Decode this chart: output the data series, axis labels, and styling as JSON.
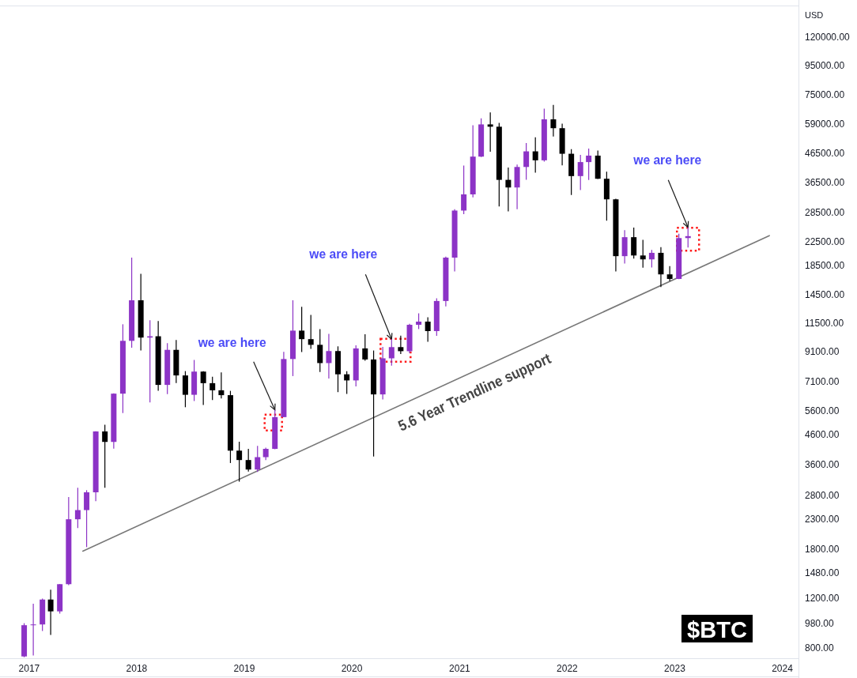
{
  "chart_data": {
    "type": "candlestick",
    "ylabel": "USD",
    "log": true,
    "annotations": [
      {
        "text": "we are here",
        "x": "2019-04-15",
        "y": 5640
      },
      {
        "text": "we are here",
        "x": "2020-05-15",
        "y": 10080
      },
      {
        "text": "we are here",
        "x": "2023-02-15",
        "y": 25250
      },
      {
        "text": "5.6 Year Trendline support",
        "x": "2021-01-25",
        "y": 7500
      },
      "$BTC"
    ],
    "xlim": [
      "2016-09-24",
      "2024-02-25"
    ],
    "xticks": [
      {
        "value": "2017-01-01",
        "label": "2017"
      },
      {
        "value": "2018-01-01",
        "label": "2018"
      },
      {
        "value": "2019-01-01",
        "label": "2019"
      },
      {
        "value": "2020-01-01",
        "label": "2020"
      },
      {
        "value": "2021-01-01",
        "label": "2021"
      },
      {
        "value": "2022-01-01",
        "label": "2022"
      },
      {
        "value": "2023-01-01",
        "label": "2023"
      },
      {
        "value": "2024-01-01",
        "label": "2024"
      }
    ],
    "ylim": [
      735,
      155000
    ],
    "yticks": [
      {
        "value": 800,
        "label": "800.00"
      },
      {
        "value": 980,
        "label": "980.00"
      },
      {
        "value": 1200,
        "label": "1200.00"
      },
      {
        "value": 1480,
        "label": "1480.00"
      },
      {
        "value": 1800,
        "label": "1800.00"
      },
      {
        "value": 2300,
        "label": "2300.00"
      },
      {
        "value": 2800,
        "label": "2800.00"
      },
      {
        "value": 3600,
        "label": "3600.00"
      },
      {
        "value": 4600,
        "label": "4600.00"
      },
      {
        "value": 5600,
        "label": "5600.00"
      },
      {
        "value": 7100,
        "label": "7100.00"
      },
      {
        "value": 9100,
        "label": "9100.00"
      },
      {
        "value": 11500,
        "label": "11500.00"
      },
      {
        "value": 14500,
        "label": "14500.00"
      },
      {
        "value": 18500,
        "label": "18500.00"
      },
      {
        "value": 22500,
        "label": "22500.00"
      },
      {
        "value": 28500,
        "label": "28500.00"
      },
      {
        "value": 36500,
        "label": "36500.00"
      },
      {
        "value": 46500,
        "label": "46500.00"
      },
      {
        "value": 59000,
        "label": "59000.00"
      },
      {
        "value": 75000,
        "label": "75000.00"
      },
      {
        "value": 95000,
        "label": "95000.00"
      },
      {
        "value": 120000,
        "label": "120000.00"
      }
    ],
    "x": [
      "2016-12-15",
      "2017-01-15",
      "2017-02-15",
      "2017-03-15",
      "2017-04-15",
      "2017-05-15",
      "2017-06-15",
      "2017-07-15",
      "2017-08-15",
      "2017-09-15",
      "2017-10-15",
      "2017-11-15",
      "2017-12-15",
      "2018-01-15",
      "2018-02-15",
      "2018-03-15",
      "2018-04-15",
      "2018-05-15",
      "2018-06-15",
      "2018-07-15",
      "2018-08-15",
      "2018-09-15",
      "2018-10-15",
      "2018-11-15",
      "2018-12-15",
      "2019-01-15",
      "2019-02-15",
      "2019-03-15",
      "2019-04-15",
      "2019-05-15",
      "2019-06-15",
      "2019-07-15",
      "2019-08-15",
      "2019-09-15",
      "2019-10-15",
      "2019-11-15",
      "2019-12-15",
      "2020-01-15",
      "2020-02-15",
      "2020-03-15",
      "2020-04-15",
      "2020-05-15",
      "2020-06-15",
      "2020-07-15",
      "2020-08-15",
      "2020-09-15",
      "2020-10-15",
      "2020-11-15",
      "2020-12-15",
      "2021-01-15",
      "2021-02-15",
      "2021-03-15",
      "2021-04-15",
      "2021-05-15",
      "2021-06-15",
      "2021-07-15",
      "2021-08-15",
      "2021-09-15",
      "2021-10-15",
      "2021-11-15",
      "2021-12-15",
      "2022-01-15",
      "2022-02-15",
      "2022-03-15",
      "2022-04-15",
      "2022-05-15",
      "2022-06-15",
      "2022-07-15",
      "2022-08-15",
      "2022-09-15",
      "2022-10-15",
      "2022-11-15",
      "2022-12-15",
      "2023-01-15",
      "2023-02-15"
    ],
    "ohlc": [
      [
        746,
        980,
        741,
        964
      ],
      [
        964,
        1150,
        752,
        970
      ],
      [
        970,
        1200,
        920,
        1190
      ],
      [
        1190,
        1290,
        890,
        1080
      ],
      [
        1080,
        1350,
        1060,
        1350
      ],
      [
        1350,
        2760,
        1340,
        2300
      ],
      [
        2300,
        2980,
        2140,
        2480
      ],
      [
        2480,
        2920,
        1830,
        2870
      ],
      [
        2870,
        4740,
        2670,
        4730
      ],
      [
        4730,
        5000,
        2980,
        4340
      ],
      [
        4340,
        6470,
        4110,
        6450
      ],
      [
        6450,
        11400,
        5500,
        9950
      ],
      [
        9950,
        19700,
        9400,
        13880
      ],
      [
        13880,
        17250,
        9200,
        10220
      ],
      [
        10220,
        11790,
        6000,
        10330
      ],
      [
        10330,
        11700,
        6600,
        6930
      ],
      [
        6930,
        9760,
        6430,
        9240
      ],
      [
        9240,
        10020,
        7040,
        7490
      ],
      [
        7490,
        7760,
        5770,
        6390
      ],
      [
        6390,
        8500,
        6070,
        7730
      ],
      [
        7730,
        7760,
        5880,
        7030
      ],
      [
        7030,
        7410,
        6120,
        6630
      ],
      [
        6630,
        7680,
        6200,
        6370
      ],
      [
        6370,
        6600,
        3650,
        4040
      ],
      [
        4040,
        4350,
        3130,
        3740
      ],
      [
        3740,
        4100,
        3400,
        3460
      ],
      [
        3460,
        4200,
        3390,
        3830
      ],
      [
        3830,
        4140,
        3740,
        4100
      ],
      [
        4100,
        5640,
        4090,
        5320
      ],
      [
        5320,
        9090,
        5320,
        8570
      ],
      [
        8570,
        13880,
        7450,
        10820
      ],
      [
        10820,
        13160,
        9070,
        10090
      ],
      [
        10090,
        12320,
        9320,
        9630
      ],
      [
        9630,
        10960,
        7710,
        8290
      ],
      [
        8290,
        10540,
        7300,
        9150
      ],
      [
        9150,
        9510,
        6530,
        7560
      ],
      [
        7560,
        7750,
        6440,
        7190
      ],
      [
        7190,
        9590,
        6850,
        9350
      ],
      [
        9350,
        10500,
        8450,
        8540
      ],
      [
        8540,
        9190,
        3850,
        6410
      ],
      [
        6410,
        9460,
        6150,
        8620
      ],
      [
        8620,
        10080,
        8110,
        9450
      ],
      [
        9450,
        10380,
        8930,
        9140
      ],
      [
        9140,
        11450,
        8990,
        11350
      ],
      [
        11350,
        12470,
        10960,
        11650
      ],
      [
        11650,
        12070,
        9880,
        10780
      ],
      [
        10780,
        14100,
        10370,
        13800
      ],
      [
        13800,
        19860,
        13200,
        19700
      ],
      [
        19700,
        29300,
        17600,
        28990
      ],
      [
        28990,
        41950,
        28130,
        33110
      ],
      [
        33110,
        58350,
        32300,
        45140
      ],
      [
        45140,
        61780,
        45000,
        58800
      ],
      [
        58800,
        64850,
        47000,
        57700
      ],
      [
        57700,
        59500,
        30000,
        37300
      ],
      [
        37300,
        41300,
        28800,
        35040
      ],
      [
        35040,
        42300,
        29300,
        41460
      ],
      [
        41460,
        50500,
        37330,
        47130
      ],
      [
        47130,
        52920,
        39600,
        43790
      ],
      [
        43790,
        66930,
        43300,
        61300
      ],
      [
        61300,
        69000,
        53250,
        57000
      ],
      [
        57000,
        59120,
        42000,
        46210
      ],
      [
        46210,
        47990,
        32930,
        38470
      ],
      [
        38470,
        45820,
        34320,
        43160
      ],
      [
        43160,
        48190,
        37260,
        45510
      ],
      [
        45510,
        47440,
        37580,
        37640
      ],
      [
        37640,
        39900,
        26700,
        31790
      ],
      [
        31790,
        31960,
        17600,
        19940
      ],
      [
        19940,
        24670,
        18780,
        23300
      ],
      [
        23300,
        25200,
        19540,
        20050
      ],
      [
        20050,
        22800,
        18150,
        19420
      ],
      [
        19420,
        20990,
        18180,
        20490
      ],
      [
        20490,
        21470,
        15480,
        17170
      ],
      [
        17170,
        18390,
        16250,
        16540
      ],
      [
        16540,
        23960,
        16500,
        23130
      ],
      [
        23130,
        25250,
        21400,
        23500
      ]
    ],
    "colors": [
      "#8c33c6",
      "#8c33c6",
      "#8c33c6",
      "#000000",
      "#8c33c6",
      "#8c33c6",
      "#8c33c6",
      "#8c33c6",
      "#8c33c6",
      "#000000",
      "#8c33c6",
      "#8c33c6",
      "#8c33c6",
      "#000000",
      "#8c33c6",
      "#000000",
      "#8c33c6",
      "#000000",
      "#000000",
      "#8c33c6",
      "#000000",
      "#000000",
      "#000000",
      "#000000",
      "#000000",
      "#000000",
      "#8c33c6",
      "#8c33c6",
      "#8c33c6",
      "#8c33c6",
      "#8c33c6",
      "#000000",
      "#000000",
      "#000000",
      "#8c33c6",
      "#000000",
      "#000000",
      "#8c33c6",
      "#000000",
      "#000000",
      "#8c33c6",
      "#8c33c6",
      "#000000",
      "#8c33c6",
      "#8c33c6",
      "#000000",
      "#8c33c6",
      "#8c33c6",
      "#8c33c6",
      "#8c33c6",
      "#8c33c6",
      "#8c33c6",
      "#000000",
      "#000000",
      "#000000",
      "#8c33c6",
      "#8c33c6",
      "#000000",
      "#8c33c6",
      "#000000",
      "#000000",
      "#000000",
      "#8c33c6",
      "#8c33c6",
      "#000000",
      "#000000",
      "#000000",
      "#8c33c6",
      "#000000",
      "#000000",
      "#8c33c6",
      "#000000",
      "#000000",
      "#8c33c6",
      "#8c33c6"
    ],
    "series": [
      {
        "type": "line",
        "x": [
          "2017-07-02",
          "2023-11-18"
        ],
        "values": [
          1770,
          23600
        ],
        "color": "#787878"
      }
    ]
  }
}
